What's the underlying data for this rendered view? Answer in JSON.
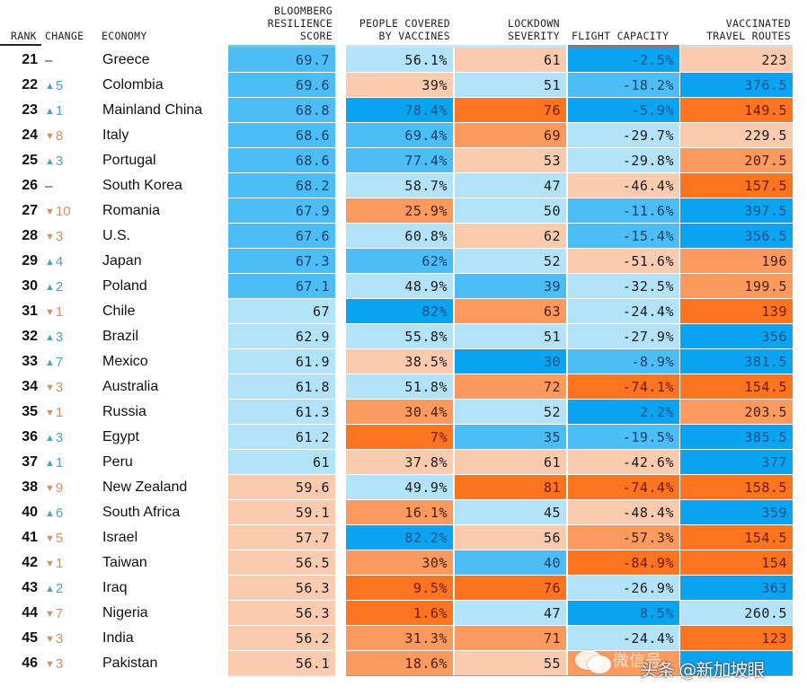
{
  "chart_data": {
    "type": "table",
    "title": "",
    "columns": [
      {
        "key": "rank",
        "label": "RANK"
      },
      {
        "key": "change",
        "label": "CHANGE"
      },
      {
        "key": "economy",
        "label": "ECONOMY"
      },
      {
        "key": "score",
        "label": "BLOOMBERG\nRESILIENCE\nSCORE"
      },
      {
        "key": "vaccines",
        "label": "PEOPLE COVERED\nBY VACCINES"
      },
      {
        "key": "lockdown",
        "label": "LOCKDOWN\nSEVERITY"
      },
      {
        "key": "flight",
        "label": "FLIGHT CAPACITY"
      },
      {
        "key": "routes",
        "label": "VACCINATED\nTRAVEL ROUTES"
      }
    ],
    "color_scale": {
      "deep_blue": "#0aa4f0",
      "mid_blue": "#4dbdf5",
      "light_blue": "#b3e3f8",
      "light_peach": "#fbcbb0",
      "mid_orange": "#fb9a5e",
      "deep_orange": "#fc7320"
    },
    "rows": [
      {
        "rank": "21",
        "dir": "none",
        "change": "–",
        "economy": "Greece",
        "score": "69.7",
        "vaccines": "56.1%",
        "lockdown": "61",
        "flight": "-2.5%",
        "routes": "223",
        "tiers": [
          "mb",
          "lb",
          "lp",
          "db",
          "lp"
        ]
      },
      {
        "rank": "22",
        "dir": "up",
        "change": "5",
        "economy": "Colombia",
        "score": "69.6",
        "vaccines": "39%",
        "lockdown": "51",
        "flight": "-18.2%",
        "routes": "376.5",
        "tiers": [
          "mb",
          "lp",
          "lb",
          "mb",
          "db"
        ]
      },
      {
        "rank": "23",
        "dir": "up",
        "change": "1",
        "economy": "Mainland China",
        "score": "68.8",
        "vaccines": "78.4%",
        "lockdown": "76",
        "flight": "-5.9%",
        "routes": "149.5",
        "tiers": [
          "mb",
          "db",
          "do",
          "db",
          "do"
        ]
      },
      {
        "rank": "24",
        "dir": "down",
        "change": "8",
        "economy": "Italy",
        "score": "68.6",
        "vaccines": "69.4%",
        "lockdown": "69",
        "flight": "-29.7%",
        "routes": "229.5",
        "tiers": [
          "mb",
          "mb",
          "mo",
          "lb",
          "lp"
        ]
      },
      {
        "rank": "25",
        "dir": "up",
        "change": "3",
        "economy": "Portugal",
        "score": "68.6",
        "vaccines": "77.4%",
        "lockdown": "53",
        "flight": "-29.8%",
        "routes": "207.5",
        "tiers": [
          "mb",
          "mb",
          "lp",
          "lb",
          "mo"
        ]
      },
      {
        "rank": "26",
        "dir": "none",
        "change": "–",
        "economy": "South Korea",
        "score": "68.2",
        "vaccines": "58.7%",
        "lockdown": "47",
        "flight": "-46.4%",
        "routes": "157.5",
        "tiers": [
          "mb",
          "lb",
          "lb",
          "lp",
          "do"
        ]
      },
      {
        "rank": "27",
        "dir": "down",
        "change": "10",
        "economy": "Romania",
        "score": "67.9",
        "vaccines": "25.9%",
        "lockdown": "50",
        "flight": "-11.6%",
        "routes": "397.5",
        "tiers": [
          "mb",
          "mo",
          "lb",
          "mb",
          "db"
        ]
      },
      {
        "rank": "28",
        "dir": "down",
        "change": "3",
        "economy": "U.S.",
        "score": "67.6",
        "vaccines": "60.8%",
        "lockdown": "62",
        "flight": "-15.4%",
        "routes": "356.5",
        "tiers": [
          "mb",
          "lb",
          "lp",
          "mb",
          "db"
        ]
      },
      {
        "rank": "29",
        "dir": "up",
        "change": "4",
        "economy": "Japan",
        "score": "67.3",
        "vaccines": "62%",
        "lockdown": "52",
        "flight": "-51.6%",
        "routes": "196",
        "tiers": [
          "mb",
          "mb",
          "lb",
          "lp",
          "mo"
        ]
      },
      {
        "rank": "30",
        "dir": "up",
        "change": "2",
        "economy": "Poland",
        "score": "67.1",
        "vaccines": "48.9%",
        "lockdown": "39",
        "flight": "-32.5%",
        "routes": "199.5",
        "tiers": [
          "mb",
          "lb",
          "mb",
          "lb",
          "mo"
        ]
      },
      {
        "rank": "31",
        "dir": "down",
        "change": "1",
        "economy": "Chile",
        "score": "67",
        "vaccines": "82%",
        "lockdown": "63",
        "flight": "-24.4%",
        "routes": "139",
        "tiers": [
          "lb",
          "db",
          "mo",
          "lb",
          "do"
        ]
      },
      {
        "rank": "32",
        "dir": "up",
        "change": "3",
        "economy": "Brazil",
        "score": "62.9",
        "vaccines": "55.8%",
        "lockdown": "51",
        "flight": "-27.9%",
        "routes": "356",
        "tiers": [
          "lb",
          "lb",
          "lb",
          "lb",
          "db"
        ]
      },
      {
        "rank": "33",
        "dir": "up",
        "change": "7",
        "economy": "Mexico",
        "score": "61.9",
        "vaccines": "38.5%",
        "lockdown": "30",
        "flight": "-8.9%",
        "routes": "381.5",
        "tiers": [
          "lb",
          "lp",
          "db",
          "mb",
          "db"
        ]
      },
      {
        "rank": "34",
        "dir": "down",
        "change": "3",
        "economy": "Australia",
        "score": "61.8",
        "vaccines": "51.8%",
        "lockdown": "72",
        "flight": "-74.1%",
        "routes": "154.5",
        "tiers": [
          "lb",
          "lb",
          "mo",
          "do",
          "do"
        ]
      },
      {
        "rank": "35",
        "dir": "down",
        "change": "1",
        "economy": "Russia",
        "score": "61.3",
        "vaccines": "30.4%",
        "lockdown": "52",
        "flight": "2.2%",
        "routes": "203.5",
        "tiers": [
          "lb",
          "mo",
          "lb",
          "db",
          "mo"
        ]
      },
      {
        "rank": "36",
        "dir": "up",
        "change": "3",
        "economy": "Egypt",
        "score": "61.2",
        "vaccines": "7%",
        "lockdown": "35",
        "flight": "-19.5%",
        "routes": "385.5",
        "tiers": [
          "lb",
          "do",
          "mb",
          "mb",
          "db"
        ]
      },
      {
        "rank": "37",
        "dir": "up",
        "change": "1",
        "economy": "Peru",
        "score": "61",
        "vaccines": "37.8%",
        "lockdown": "61",
        "flight": "-42.6%",
        "routes": "377",
        "tiers": [
          "lb",
          "lp",
          "lp",
          "lp",
          "db"
        ]
      },
      {
        "rank": "38",
        "dir": "down",
        "change": "9",
        "economy": "New Zealand",
        "score": "59.6",
        "vaccines": "49.9%",
        "lockdown": "81",
        "flight": "-74.4%",
        "routes": "158.5",
        "tiers": [
          "lp",
          "lb",
          "do",
          "do",
          "do"
        ]
      },
      {
        "rank": "40",
        "dir": "up",
        "change": "6",
        "economy": "South Africa",
        "score": "59.1",
        "vaccines": "16.1%",
        "lockdown": "45",
        "flight": "-48.4%",
        "routes": "359",
        "tiers": [
          "lp",
          "mo",
          "lb",
          "lp",
          "db"
        ]
      },
      {
        "rank": "41",
        "dir": "down",
        "change": "5",
        "economy": "Israel",
        "score": "57.7",
        "vaccines": "82.2%",
        "lockdown": "56",
        "flight": "-57.3%",
        "routes": "154.5",
        "tiers": [
          "lp",
          "db",
          "lp",
          "mo",
          "do"
        ]
      },
      {
        "rank": "42",
        "dir": "down",
        "change": "1",
        "economy": "Taiwan",
        "score": "56.5",
        "vaccines": "30%",
        "lockdown": "40",
        "flight": "-84.9%",
        "routes": "154",
        "tiers": [
          "lp",
          "mo",
          "mb",
          "do",
          "do"
        ]
      },
      {
        "rank": "43",
        "dir": "up",
        "change": "2",
        "economy": "Iraq",
        "score": "56.3",
        "vaccines": "9.5%",
        "lockdown": "76",
        "flight": "-26.9%",
        "routes": "363",
        "tiers": [
          "lp",
          "do",
          "do",
          "lb",
          "db"
        ]
      },
      {
        "rank": "44",
        "dir": "down",
        "change": "7",
        "economy": "Nigeria",
        "score": "56.3",
        "vaccines": "1.6%",
        "lockdown": "47",
        "flight": "8.5%",
        "routes": "260.5",
        "tiers": [
          "lp",
          "do",
          "lb",
          "db",
          "lb"
        ]
      },
      {
        "rank": "45",
        "dir": "down",
        "change": "3",
        "economy": "India",
        "score": "56.2",
        "vaccines": "31.3%",
        "lockdown": "71",
        "flight": "-24.4%",
        "routes": "123",
        "tiers": [
          "lp",
          "mo",
          "mo",
          "lb",
          "do"
        ]
      },
      {
        "rank": "46",
        "dir": "down",
        "change": "3",
        "economy": "Pakistan",
        "score": "56.1",
        "vaccines": "18.6%",
        "lockdown": "55",
        "flight": "",
        "routes": "",
        "tiers": [
          "lp",
          "mo",
          "lp",
          "mo",
          "db"
        ]
      }
    ]
  },
  "header": {
    "rank": "RANK",
    "change": "CHANGE",
    "economy": "ECONOMY",
    "score": "BLOOMBERG\nRESILIENCE\nSCORE",
    "vaccines": "PEOPLE COVERED\nBY VACCINES",
    "lockdown": "LOCKDOWN\nSEVERITY",
    "flight": "FLIGHT CAPACITY",
    "routes": "VACCINATED\nTRAVEL ROUTES"
  },
  "symbols": {
    "up": "▲",
    "down": "▼"
  },
  "watermark": {
    "line1": "微信号",
    "line2": "头条 @新加坡眼"
  }
}
